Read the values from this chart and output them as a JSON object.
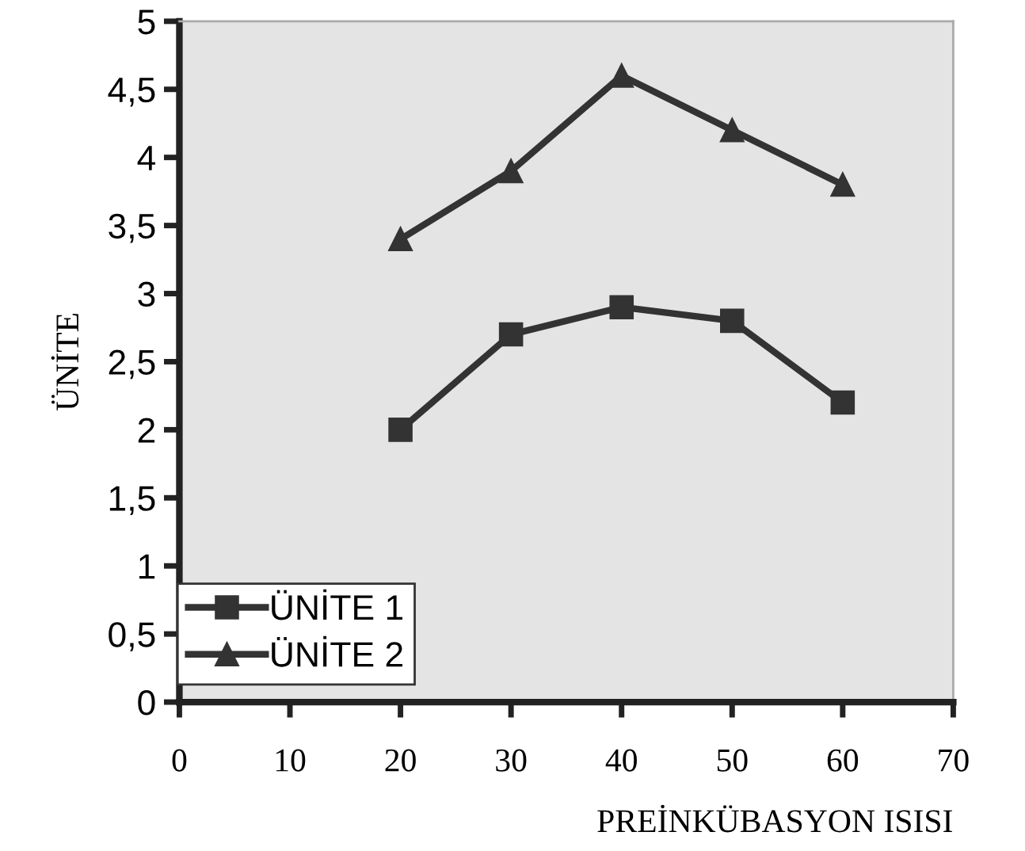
{
  "chart_data": {
    "type": "line",
    "xlabel": "PREİNKÜBASYON ISISI",
    "ylabel": "ÜNİTE",
    "x": [
      20,
      30,
      40,
      50,
      60
    ],
    "series": [
      {
        "name": "ÜNİTE 1",
        "color": "#333333",
        "marker": "square",
        "values": [
          2.0,
          2.7,
          2.9,
          2.8,
          2.2
        ]
      },
      {
        "name": "ÜNİTE 2",
        "color": "#333333",
        "marker": "triangle",
        "values": [
          3.4,
          3.9,
          4.6,
          4.2,
          3.8
        ]
      }
    ],
    "xlim": [
      0,
      70
    ],
    "xticks": [
      0,
      10,
      20,
      30,
      40,
      50,
      60,
      70
    ],
    "ylim": [
      0,
      5
    ],
    "yticks": [
      0,
      {
        "value": 0.5,
        "label": "0,5"
      },
      1,
      {
        "value": 1.5,
        "label": "1,5"
      },
      2,
      {
        "value": 2.5,
        "label": "2,5"
      },
      3,
      {
        "value": 3.5,
        "label": "3,5"
      },
      4,
      {
        "value": 4.5,
        "label": "4,5"
      },
      5
    ],
    "grid": false,
    "legend": "bottom left",
    "line_style": "solid"
  }
}
